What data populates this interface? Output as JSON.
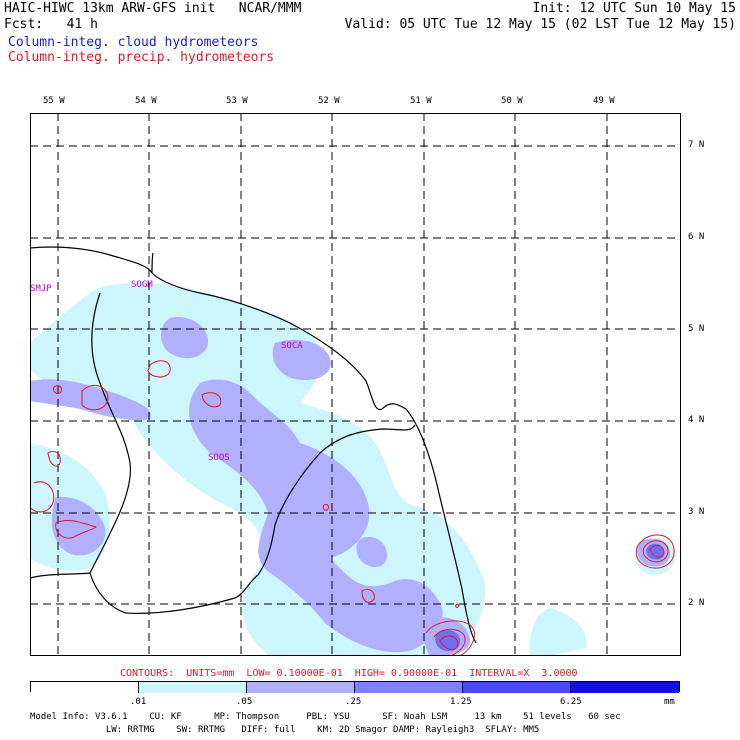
{
  "header": {
    "line1_left": "HAIC-HIWC 13km ARW-GFS init   NCAR/MMM",
    "line1_right": "Init: 12 UTC Sun 10 May 15",
    "line2_left": "Fcst:   41 h",
    "line2_right": "Valid: 05 UTC Tue 12 May 15 (02 LST Tue 12 May 15)",
    "line3": "Column-integ. cloud hydrometeors",
    "line4": "Column-integ. precip. hydrometeors"
  },
  "map": {
    "lon_labels": [
      "55 W",
      "54 W",
      "53 W",
      "52 W",
      "51 W",
      "50 W",
      "49 W"
    ],
    "lat_labels": [
      "7 N",
      "6 N",
      "5 N",
      "4 N",
      "3 N",
      "2 N"
    ],
    "stations": [
      "SMJP",
      "SOGM",
      "SOCA",
      "SOOS"
    ]
  },
  "contour_note": "CONTOURS:  UNITS=mm  LOW= 0.10000E-01  HIGH= 0.90000E-01  INTERVAL=X  3.0000",
  "colorbar": {
    "ticks": [
      ".01",
      ".05",
      ".25",
      "1.25",
      "6.25"
    ],
    "unit": "mm",
    "colors": [
      "#ffffff",
      "#ccf5fc",
      "#b0b0ff",
      "#8080ff",
      "#4848ff",
      "#1010e0"
    ]
  },
  "footer": {
    "line1": "Model Info: V3.6.1    CU: KF      MP: Thompson     PBL: YSU      SF: Noah LSM     13 km    51 levels   60 sec",
    "line2": "              LW: RRTMG    SW: RRTMG   DIFF: full    KM: 2D Smagor DAMP: Rayleigh3  SFLAY: MM5"
  }
}
